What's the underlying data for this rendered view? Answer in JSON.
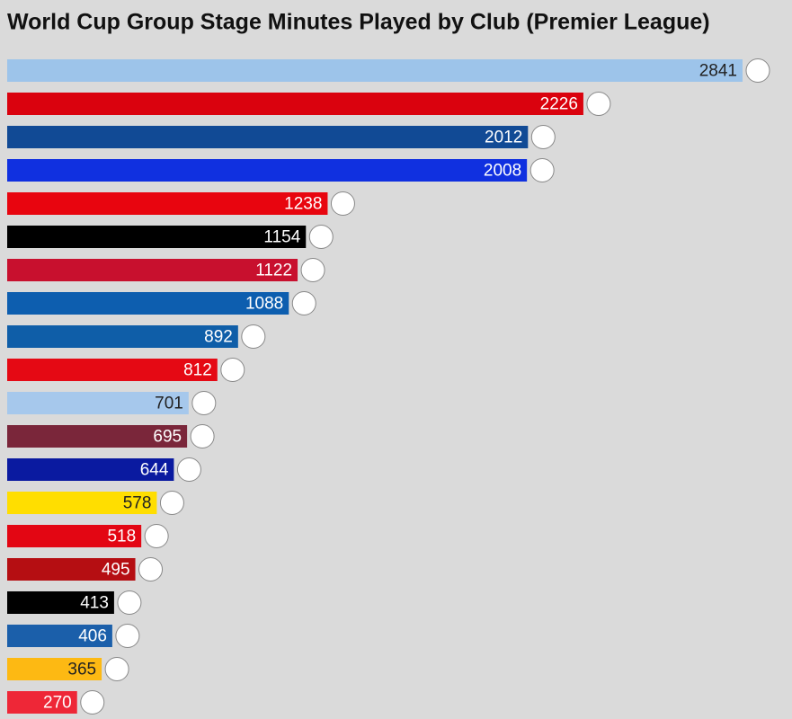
{
  "chart_data": {
    "type": "barh",
    "title": "World Cup Group Stage Minutes Played by Club (Premier League)",
    "values": [
      2841,
      2226,
      2012,
      2008,
      1238,
      1154,
      1122,
      1088,
      892,
      812,
      701,
      695,
      644,
      578,
      518,
      495,
      413,
      406,
      365,
      270
    ],
    "colors": [
      "#9dc4ea",
      "#da020e",
      "#114a95",
      "#1030e0",
      "#e8050f",
      "#000000",
      "#c8102e",
      "#0d5eaf",
      "#0f5ea8",
      "#e50914",
      "#a6c8ec",
      "#7a263a",
      "#0a1aa0",
      "#ffde00",
      "#e30613",
      "#b50e12",
      "#000000",
      "#1b5faa",
      "#fdb913",
      "#ee2737"
    ]
  }
}
